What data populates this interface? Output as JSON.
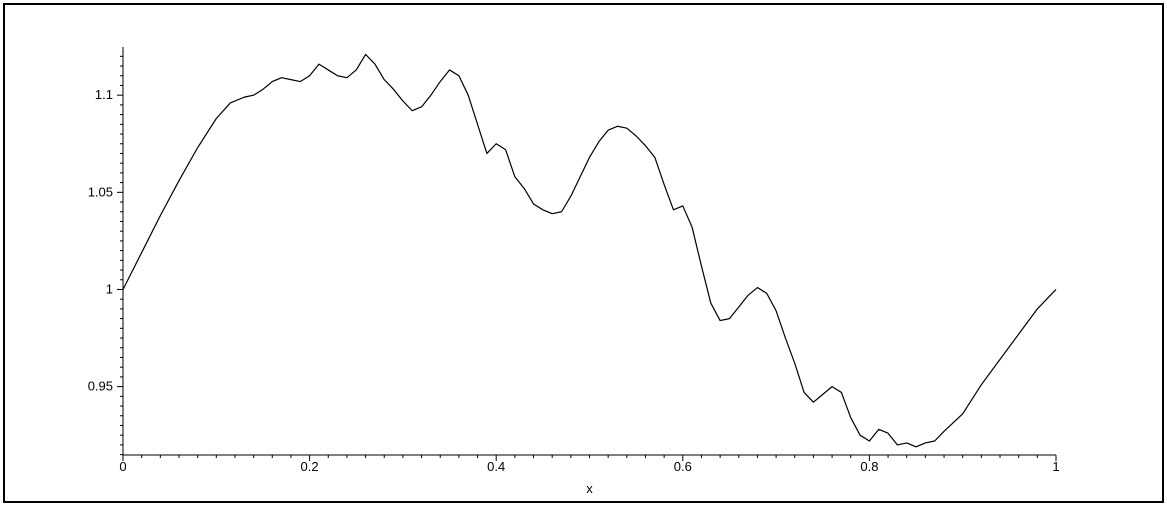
{
  "chart_data": {
    "type": "line",
    "title": "",
    "xlabel": "x",
    "ylabel": "",
    "xlim": [
      0,
      1
    ],
    "ylim": [
      0.9148,
      1.1248
    ],
    "grid": false,
    "legend": "none",
    "line_color": "#000000",
    "x_ticks": [
      {
        "value": 0,
        "label": "0"
      },
      {
        "value": 0.2,
        "label": "0.2"
      },
      {
        "value": 0.4,
        "label": "0.4"
      },
      {
        "value": 0.6,
        "label": "0.6"
      },
      {
        "value": 0.8,
        "label": "0.8"
      },
      {
        "value": 1,
        "label": "1"
      }
    ],
    "y_ticks": [
      {
        "value": 0.95,
        "label": "0.95"
      },
      {
        "value": 1.0,
        "label": "1"
      },
      {
        "value": 1.05,
        "label": "1.05"
      },
      {
        "value": 1.1,
        "label": "1.1"
      }
    ],
    "series": [
      {
        "x": [
          0,
          0.02,
          0.04,
          0.06,
          0.08,
          0.1,
          0.115,
          0.13,
          0.14,
          0.15,
          0.16,
          0.17,
          0.18,
          0.19,
          0.2,
          0.21,
          0.22,
          0.23,
          0.24,
          0.25,
          0.26,
          0.27,
          0.28,
          0.29,
          0.3,
          0.31,
          0.32,
          0.33,
          0.34,
          0.35,
          0.36,
          0.37,
          0.38,
          0.39,
          0.4,
          0.41,
          0.42,
          0.43,
          0.44,
          0.45,
          0.46,
          0.47,
          0.48,
          0.49,
          0.5,
          0.51,
          0.52,
          0.53,
          0.54,
          0.55,
          0.56,
          0.57,
          0.58,
          0.59,
          0.6,
          0.61,
          0.62,
          0.63,
          0.64,
          0.65,
          0.66,
          0.67,
          0.68,
          0.69,
          0.7,
          0.71,
          0.72,
          0.73,
          0.74,
          0.75,
          0.76,
          0.77,
          0.78,
          0.79,
          0.8,
          0.81,
          0.82,
          0.83,
          0.84,
          0.85,
          0.86,
          0.87,
          0.88,
          0.9,
          0.92,
          0.94,
          0.96,
          0.98,
          1.0
        ],
        "y": [
          1.0,
          1.019,
          1.038,
          1.056,
          1.073,
          1.088,
          1.096,
          1.099,
          1.1,
          1.103,
          1.107,
          1.109,
          1.108,
          1.107,
          1.11,
          1.116,
          1.113,
          1.11,
          1.109,
          1.113,
          1.121,
          1.116,
          1.108,
          1.103,
          1.097,
          1.092,
          1.094,
          1.1,
          1.107,
          1.113,
          1.11,
          1.1,
          1.085,
          1.07,
          1.075,
          1.072,
          1.058,
          1.052,
          1.044,
          1.041,
          1.039,
          1.04,
          1.048,
          1.058,
          1.068,
          1.076,
          1.082,
          1.084,
          1.083,
          1.079,
          1.074,
          1.068,
          1.054,
          1.041,
          1.043,
          1.032,
          1.012,
          0.993,
          0.984,
          0.985,
          0.991,
          0.997,
          1.001,
          0.998,
          0.989,
          0.975,
          0.962,
          0.947,
          0.942,
          0.946,
          0.95,
          0.947,
          0.934,
          0.925,
          0.922,
          0.928,
          0.926,
          0.92,
          0.921,
          0.919,
          0.921,
          0.922,
          0.927,
          0.936,
          0.951,
          0.964,
          0.977,
          0.99,
          1.0
        ]
      }
    ]
  }
}
